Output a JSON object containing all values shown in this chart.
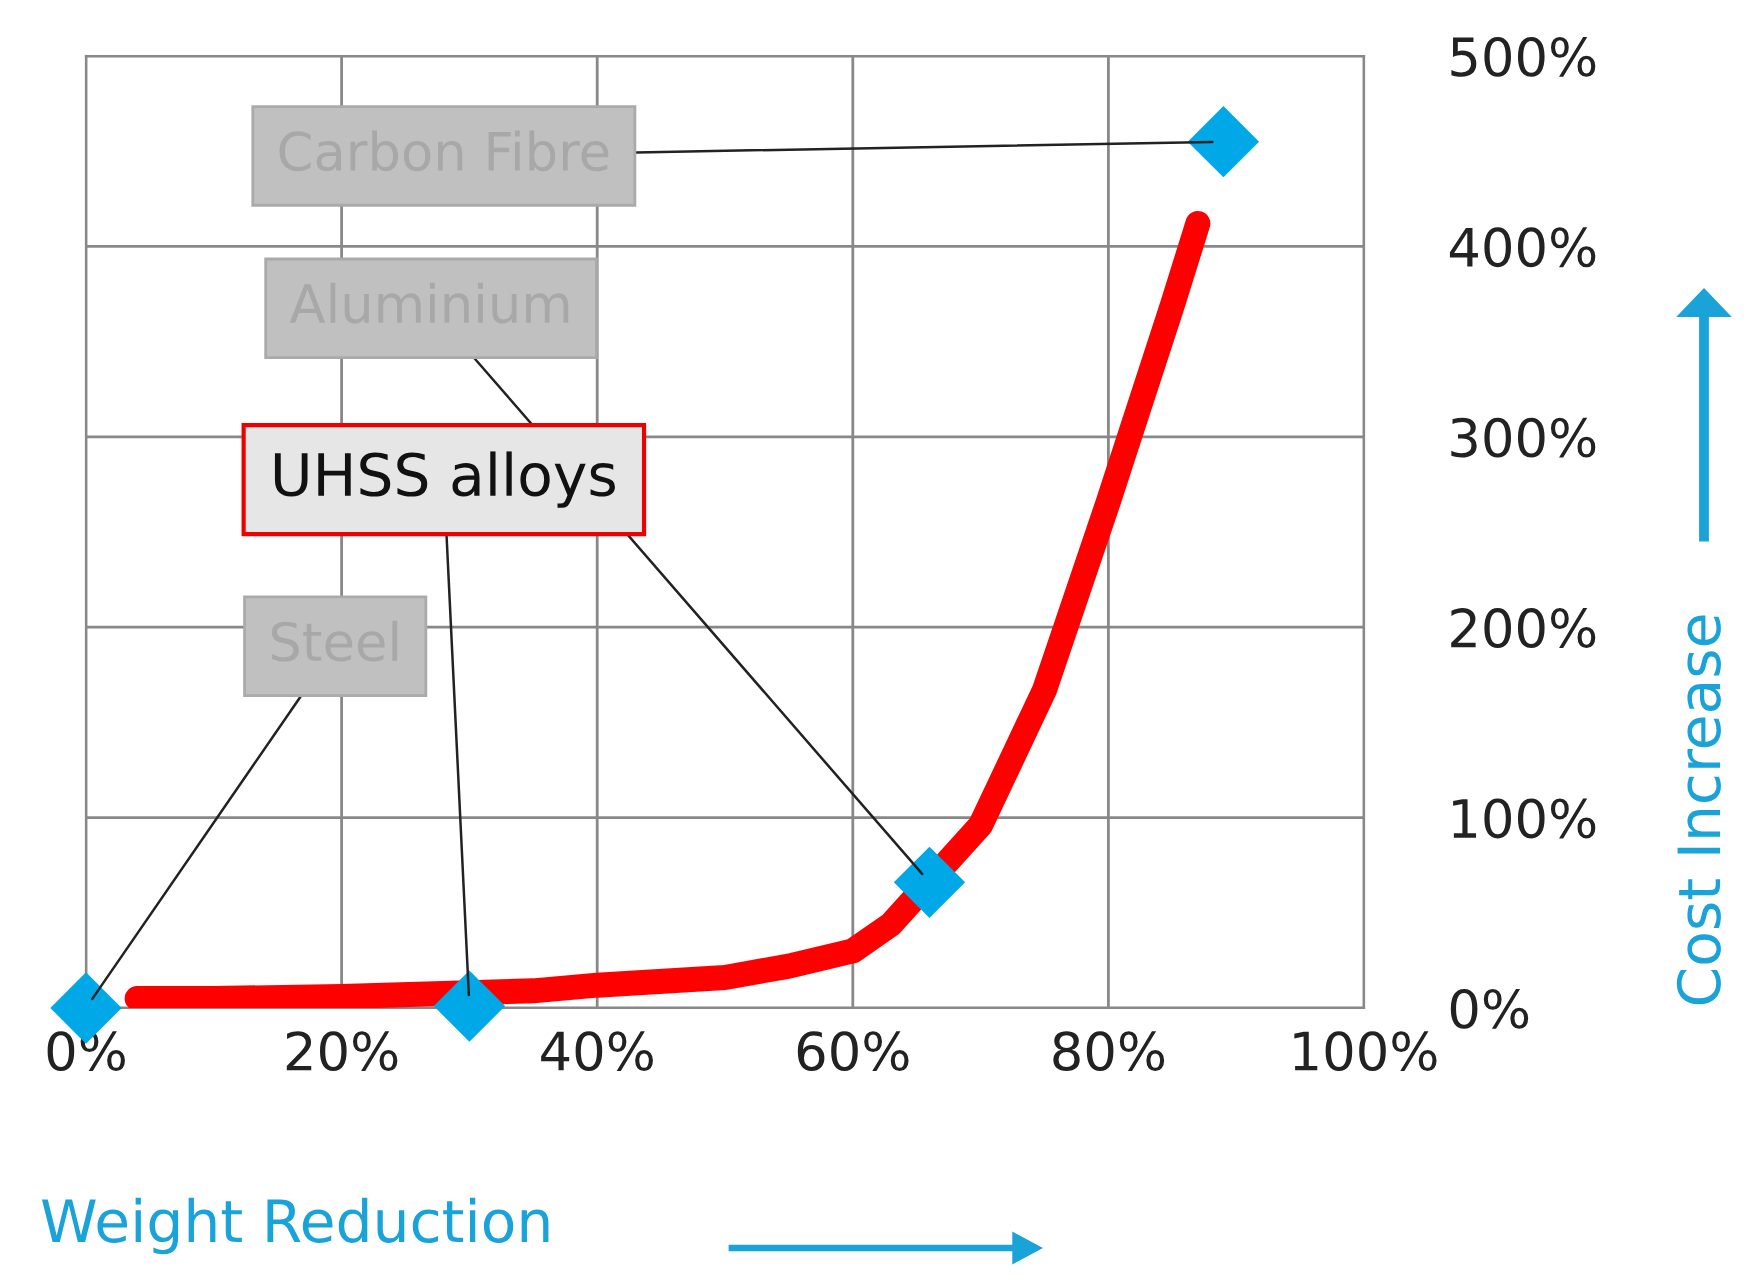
{
  "chart_data": {
    "type": "line",
    "xlabel": "Weight Reduction",
    "ylabel": "Cost Increase",
    "xlim": [
      0,
      100
    ],
    "ylim": [
      0,
      500
    ],
    "xticks": [
      {
        "value": 0,
        "label": "0%"
      },
      {
        "value": 20,
        "label": "20%"
      },
      {
        "value": 40,
        "label": "40%"
      },
      {
        "value": 60,
        "label": "60%"
      },
      {
        "value": 80,
        "label": "80%"
      },
      {
        "value": 100,
        "label": "100%"
      }
    ],
    "yticks": [
      {
        "value": 0,
        "label": "0%"
      },
      {
        "value": 100,
        "label": "100%"
      },
      {
        "value": 200,
        "label": "200%"
      },
      {
        "value": 300,
        "label": "300%"
      },
      {
        "value": 400,
        "label": "400%"
      },
      {
        "value": 500,
        "label": "500%"
      }
    ],
    "grid": true,
    "line_style": "solid",
    "series": [
      {
        "color": "#ff0000",
        "x": [
          4,
          10,
          20,
          35,
          40,
          50,
          55,
          60,
          63,
          70,
          75,
          80,
          85,
          87
        ],
        "values": [
          5,
          5,
          6,
          9,
          12,
          16,
          22,
          30,
          44,
          96,
          167,
          266,
          369,
          412
        ]
      },
      {
        "type": "scatter",
        "marker": "diamond",
        "color": "#00a8e8",
        "x": [
          0,
          30,
          66,
          89
        ],
        "values": [
          0,
          1,
          66,
          455
        ]
      }
    ],
    "annotations": [
      {
        "text": "Carbon Fibre",
        "x": 89,
        "y": 455
      },
      {
        "text": "Aluminium",
        "x": 66,
        "y": 66
      },
      {
        "text": "UHSS alloys",
        "x": 30,
        "y": 1
      },
      {
        "text": "Steel",
        "x": 0,
        "y": 0
      }
    ]
  }
}
